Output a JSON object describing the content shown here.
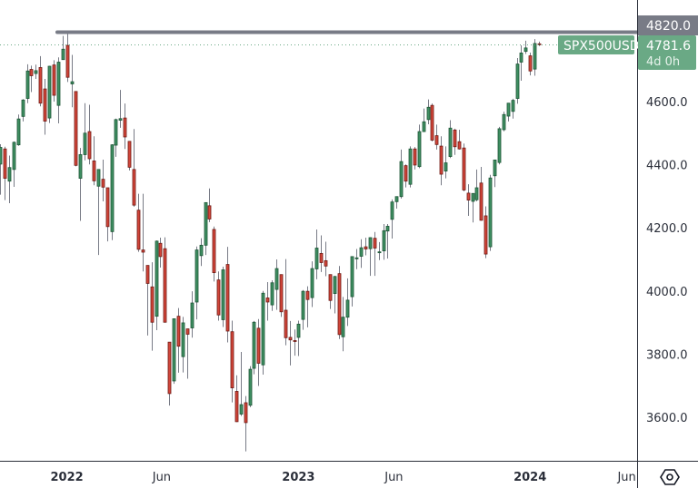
{
  "chart_data": {
    "type": "candlestick",
    "symbol": "SPX500USD",
    "interval": "weekly",
    "last_price": "4781.6",
    "countdown": "4d 0h",
    "resistance_level": "4820.0",
    "y_ticks": [
      "4600.0",
      "4400.0",
      "4200.0",
      "4000.0",
      "3800.0",
      "3600.0"
    ],
    "x_ticks": [
      {
        "label": "2022",
        "date": "2022-01-03",
        "year": true
      },
      {
        "label": "Jun",
        "date": "2022-06-01",
        "year": false
      },
      {
        "label": "2023",
        "date": "2023-01-02",
        "year": true
      },
      {
        "label": "Jun",
        "date": "2023-06-01",
        "year": false
      },
      {
        "label": "2024",
        "date": "2024-01-01",
        "year": true
      },
      {
        "label": "Jun",
        "date": "2024-06-01",
        "year": false
      }
    ],
    "ylim": [
      3480,
      4950
    ],
    "colors": {
      "up": "#3f8f62",
      "up_border": "#1d5536",
      "down": "#d2453a",
      "down_border": "#6e1a14",
      "wick": "#787b86",
      "price_label": "#6aa985",
      "resistance": "#787b86"
    },
    "columns": [
      "week",
      "open",
      "high",
      "low",
      "close"
    ],
    "candles": [
      [
        "2021-09-20",
        4402,
        4465,
        4305,
        4455
      ],
      [
        "2021-09-27",
        4450,
        4457,
        4288,
        4357
      ],
      [
        "2021-10-04",
        4348,
        4429,
        4278,
        4391
      ],
      [
        "2021-10-11",
        4385,
        4474,
        4330,
        4471
      ],
      [
        "2021-10-18",
        4463,
        4559,
        4460,
        4545
      ],
      [
        "2021-10-25",
        4553,
        4608,
        4537,
        4605
      ],
      [
        "2021-11-01",
        4610,
        4718,
        4595,
        4697
      ],
      [
        "2021-11-08",
        4702,
        4714,
        4630,
        4682
      ],
      [
        "2021-11-15",
        4689,
        4717,
        4672,
        4698
      ],
      [
        "2021-11-22",
        4708,
        4744,
        4585,
        4595
      ],
      [
        "2021-11-29",
        4640,
        4672,
        4495,
        4538
      ],
      [
        "2021-12-06",
        4548,
        4713,
        4532,
        4712
      ],
      [
        "2021-12-13",
        4716,
        4731,
        4600,
        4620
      ],
      [
        "2021-12-20",
        4588,
        4740,
        4531,
        4725
      ],
      [
        "2021-12-27",
        4733,
        4808,
        4733,
        4766
      ],
      [
        "2022-01-03",
        4778,
        4818,
        4662,
        4677
      ],
      [
        "2022-01-10",
        4656,
        4748,
        4582,
        4663
      ],
      [
        "2022-01-18",
        4632,
        4632,
        4395,
        4398
      ],
      [
        "2022-01-24",
        4357,
        4453,
        4222,
        4432
      ],
      [
        "2022-01-31",
        4432,
        4595,
        4414,
        4500
      ],
      [
        "2022-02-07",
        4505,
        4590,
        4401,
        4419
      ],
      [
        "2022-02-14",
        4412,
        4490,
        4335,
        4349
      ],
      [
        "2022-02-22",
        4332,
        4385,
        4114,
        4385
      ],
      [
        "2022-02-28",
        4354,
        4416,
        4284,
        4329
      ],
      [
        "2022-03-07",
        4327,
        4327,
        4157,
        4204
      ],
      [
        "2022-03-14",
        4188,
        4465,
        4161,
        4463
      ],
      [
        "2022-03-21",
        4462,
        4546,
        4425,
        4543
      ],
      [
        "2022-03-28",
        4541,
        4637,
        4517,
        4546
      ],
      [
        "2022-04-04",
        4548,
        4594,
        4450,
        4488
      ],
      [
        "2022-04-11",
        4474,
        4474,
        4382,
        4392
      ],
      [
        "2022-04-18",
        4385,
        4513,
        4267,
        4272
      ],
      [
        "2022-04-25",
        4256,
        4308,
        4124,
        4132
      ],
      [
        "2022-05-02",
        4130,
        4308,
        4062,
        4123
      ],
      [
        "2022-05-09",
        4081,
        4081,
        3859,
        4024
      ],
      [
        "2022-05-16",
        4013,
        4091,
        3811,
        3901
      ],
      [
        "2022-05-23",
        3920,
        4160,
        3876,
        4158
      ],
      [
        "2022-05-31",
        4151,
        4169,
        4074,
        4109
      ],
      [
        "2022-06-06",
        4134,
        4170,
        3900,
        3901
      ],
      [
        "2022-06-13",
        3838,
        3838,
        3637,
        3675
      ],
      [
        "2022-06-21",
        3715,
        3913,
        3706,
        3912
      ],
      [
        "2022-06-27",
        3920,
        3946,
        3741,
        3825
      ],
      [
        "2022-07-05",
        3792,
        3918,
        3742,
        3899
      ],
      [
        "2022-07-11",
        3880,
        3880,
        3722,
        3863
      ],
      [
        "2022-07-18",
        3883,
        3999,
        3852,
        3962
      ],
      [
        "2022-07-25",
        3965,
        4141,
        3910,
        4130
      ],
      [
        "2022-08-01",
        4112,
        4167,
        4079,
        4145
      ],
      [
        "2022-08-08",
        4145,
        4280,
        4114,
        4280
      ],
      [
        "2022-08-15",
        4270,
        4325,
        4218,
        4228
      ],
      [
        "2022-08-22",
        4195,
        4204,
        4030,
        4058
      ],
      [
        "2022-08-29",
        4035,
        4062,
        3906,
        3924
      ],
      [
        "2022-09-06",
        3909,
        4077,
        3886,
        4067
      ],
      [
        "2022-09-12",
        4084,
        4140,
        3837,
        3873
      ],
      [
        "2022-09-19",
        3871,
        3906,
        3647,
        3693
      ],
      [
        "2022-09-26",
        3682,
        3733,
        3585,
        3586
      ],
      [
        "2022-10-03",
        3610,
        3807,
        3604,
        3640
      ],
      [
        "2022-10-10",
        3646,
        3667,
        3492,
        3583
      ],
      [
        "2022-10-17",
        3638,
        3762,
        3632,
        3752
      ],
      [
        "2022-10-24",
        3755,
        3905,
        3736,
        3901
      ],
      [
        "2022-10-31",
        3882,
        3911,
        3699,
        3771
      ],
      [
        "2022-11-07",
        3766,
        4000,
        3735,
        3993
      ],
      [
        "2022-11-14",
        3978,
        4028,
        3906,
        3965
      ],
      [
        "2022-11-21",
        3956,
        4034,
        3937,
        4026
      ],
      [
        "2022-11-28",
        4005,
        4100,
        3940,
        4071
      ],
      [
        "2022-12-05",
        4052,
        4052,
        3918,
        3934
      ],
      [
        "2022-12-12",
        3939,
        4101,
        3828,
        3852
      ],
      [
        "2022-12-19",
        3853,
        3905,
        3764,
        3845
      ],
      [
        "2022-12-27",
        3843,
        3878,
        3795,
        3840
      ],
      [
        "2023-01-03",
        3853,
        3906,
        3794,
        3895
      ],
      [
        "2023-01-09",
        3910,
        4003,
        3877,
        3999
      ],
      [
        "2023-01-17",
        3999,
        4015,
        3885,
        3973
      ],
      [
        "2023-01-23",
        3979,
        4094,
        3949,
        4071
      ],
      [
        "2023-01-30",
        4070,
        4195,
        4037,
        4136
      ],
      [
        "2023-02-06",
        4119,
        4176,
        4060,
        4090
      ],
      [
        "2023-02-13",
        4096,
        4156,
        4047,
        4079
      ],
      [
        "2023-02-21",
        4052,
        4052,
        3943,
        3970
      ],
      [
        "2023-02-27",
        3992,
        4048,
        3929,
        4046
      ],
      [
        "2023-03-06",
        4055,
        4079,
        3848,
        3862
      ],
      [
        "2023-03-13",
        3855,
        3981,
        3809,
        3917
      ],
      [
        "2023-03-20",
        3917,
        4040,
        3889,
        3971
      ],
      [
        "2023-03-27",
        3982,
        4110,
        3951,
        4109
      ],
      [
        "2023-04-03",
        4102,
        4133,
        4069,
        4105
      ],
      [
        "2023-04-10",
        4110,
        4164,
        4073,
        4137
      ],
      [
        "2023-04-17",
        4140,
        4169,
        4113,
        4133
      ],
      [
        "2023-04-24",
        4134,
        4170,
        4048,
        4169
      ],
      [
        "2023-05-01",
        4167,
        4187,
        4048,
        4136
      ],
      [
        "2023-05-08",
        4124,
        4155,
        4098,
        4124
      ],
      [
        "2023-05-15",
        4127,
        4212,
        4099,
        4191
      ],
      [
        "2023-05-22",
        4190,
        4212,
        4103,
        4205
      ],
      [
        "2023-05-30",
        4227,
        4290,
        4166,
        4282
      ],
      [
        "2023-06-05",
        4283,
        4299,
        4261,
        4299
      ],
      [
        "2023-06-12",
        4299,
        4448,
        4293,
        4410
      ],
      [
        "2023-06-20",
        4397,
        4401,
        4328,
        4348
      ],
      [
        "2023-06-26",
        4338,
        4458,
        4328,
        4450
      ],
      [
        "2023-07-03",
        4450,
        4456,
        4385,
        4399
      ],
      [
        "2023-07-10",
        4394,
        4527,
        4389,
        4505
      ],
      [
        "2023-07-17",
        4505,
        4578,
        4505,
        4536
      ],
      [
        "2023-07-24",
        4543,
        4607,
        4528,
        4582
      ],
      [
        "2023-07-31",
        4588,
        4594,
        4474,
        4478
      ],
      [
        "2023-08-07",
        4492,
        4527,
        4448,
        4464
      ],
      [
        "2023-08-14",
        4459,
        4490,
        4335,
        4370
      ],
      [
        "2023-08-21",
        4380,
        4458,
        4357,
        4406
      ],
      [
        "2023-08-28",
        4426,
        4541,
        4421,
        4516
      ],
      [
        "2023-09-05",
        4510,
        4514,
        4431,
        4457
      ],
      [
        "2023-09-11",
        4473,
        4511,
        4448,
        4450
      ],
      [
        "2023-09-18",
        4453,
        4467,
        4316,
        4320
      ],
      [
        "2023-09-25",
        4310,
        4338,
        4238,
        4288
      ],
      [
        "2023-10-02",
        4284,
        4308,
        4217,
        4309
      ],
      [
        "2023-10-09",
        4289,
        4385,
        4284,
        4327
      ],
      [
        "2023-10-16",
        4342,
        4393,
        4223,
        4224
      ],
      [
        "2023-10-23",
        4238,
        4268,
        4104,
        4117
      ],
      [
        "2023-10-30",
        4140,
        4368,
        4127,
        4358
      ],
      [
        "2023-11-06",
        4365,
        4415,
        4329,
        4415
      ],
      [
        "2023-11-13",
        4407,
        4520,
        4401,
        4514
      ],
      [
        "2023-11-20",
        4511,
        4568,
        4506,
        4559
      ],
      [
        "2023-11-27",
        4554,
        4595,
        4537,
        4595
      ],
      [
        "2023-12-04",
        4569,
        4609,
        4546,
        4604
      ],
      [
        "2023-12-11",
        4610,
        4738,
        4593,
        4719
      ],
      [
        "2023-12-18",
        4725,
        4778,
        4666,
        4754
      ],
      [
        "2023-12-26",
        4759,
        4793,
        4751,
        4770
      ],
      [
        "2024-01-02",
        4745,
        4755,
        4683,
        4697
      ],
      [
        "2024-01-08",
        4703,
        4798,
        4682,
        4784
      ],
      [
        "2024-01-15",
        4783,
        4790,
        4776,
        4781.6
      ]
    ]
  }
}
